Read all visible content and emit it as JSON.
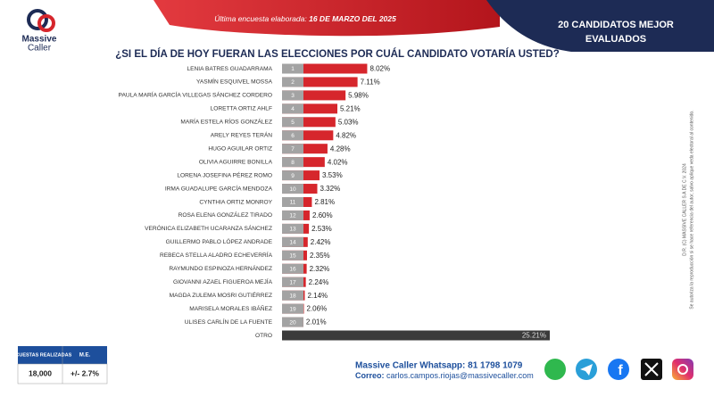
{
  "header": {
    "logo": [
      "Massive",
      "Caller"
    ],
    "date_label": "Última encuesta elaborada:",
    "date": "16 DE MARZO DEL 2025",
    "badge": [
      "20 CANDIDATOS MEJOR",
      "EVALUADOS"
    ]
  },
  "chart_data": {
    "type": "bar",
    "title": "¿SI EL DÍA DE HOY FUERAN LAS ELECCIONES POR CUÁL CANDIDATO VOTARÍA USTED?",
    "categories": [
      "LENIA BATRES GUADARRAMA",
      "YASMÍN ESQUIVEL MOSSA",
      "PAULA MARÍA GARCÍA VILLEGAS SÁNCHEZ CORDERO",
      "LORETTA ORTIZ AHLF",
      "MARÍA ESTELA RÍOS GONZÁLEZ",
      "ARELY REYES TERÁN",
      "HUGO AGUILAR ORTIZ",
      "OLIVIA AGUIRRE BONILLA",
      "LORENA JOSEFINA PÉREZ ROMO",
      "IRMA GUADALUPE GARCÍA MENDOZA",
      "CYNTHIA ORTIZ MONROY",
      "ROSA ELENA GONZÁLEZ TIRADO",
      "VERÓNICA ELIZABETH UCARANZA SÁNCHEZ",
      "GUILLERMO PABLO LÓPEZ ANDRADE",
      "REBECA STELLA ALADRO ECHEVERRÍA",
      "RAYMUNDO ESPINOZA HERNÁNDEZ",
      "GIOVANNI AZAEL FIGUEROA MEJÍA",
      "MAGDA ZULEMA MOSRI GUTIÉRREZ",
      "MARISELA MORALES IBÁÑEZ",
      "ULISES CARLÍN DE LA FUENTE",
      "OTRO"
    ],
    "ranks": [
      1,
      2,
      3,
      4,
      5,
      6,
      7,
      8,
      9,
      10,
      11,
      12,
      13,
      14,
      15,
      16,
      17,
      18,
      19,
      20,
      null
    ],
    "values": [
      8.02,
      7.11,
      5.98,
      5.21,
      5.03,
      4.82,
      4.28,
      4.02,
      3.53,
      3.32,
      2.81,
      2.6,
      2.53,
      2.42,
      2.35,
      2.32,
      2.24,
      2.14,
      2.06,
      2.01,
      25.21
    ],
    "value_labels": [
      "8.02%",
      "7.11%",
      "5.98%",
      "5.21%",
      "5.03%",
      "4.82%",
      "4.28%",
      "4.02%",
      "3.53%",
      "3.32%",
      "2.81%",
      "2.60%",
      "2.53%",
      "2.42%",
      "2.35%",
      "2.32%",
      "2.24%",
      "2.14%",
      "2.06%",
      "2.01%",
      "25.21%"
    ],
    "color": "#d6262c",
    "other_color": "#3b3b3b",
    "rank_color": "#a3a3a3"
  },
  "side_note": [
    "D.R. (C) MASSIVE CALLER S.A DE C.V. 2024",
    "Se autoriza la reproducción si se hace referencia del autor, salvo aplique veda electoral al contenido."
  ],
  "stats": {
    "headers": [
      "ENCUESTAS REALIZADAS",
      "M.E."
    ],
    "values": [
      "18,000",
      "+/- 2.7%"
    ]
  },
  "contact": {
    "whatsapp": "Massive Caller Whatsapp: 81 1798 1079",
    "email_label": "Correo:",
    "email": "carlos.campos.riojas@massivecaller.com"
  }
}
